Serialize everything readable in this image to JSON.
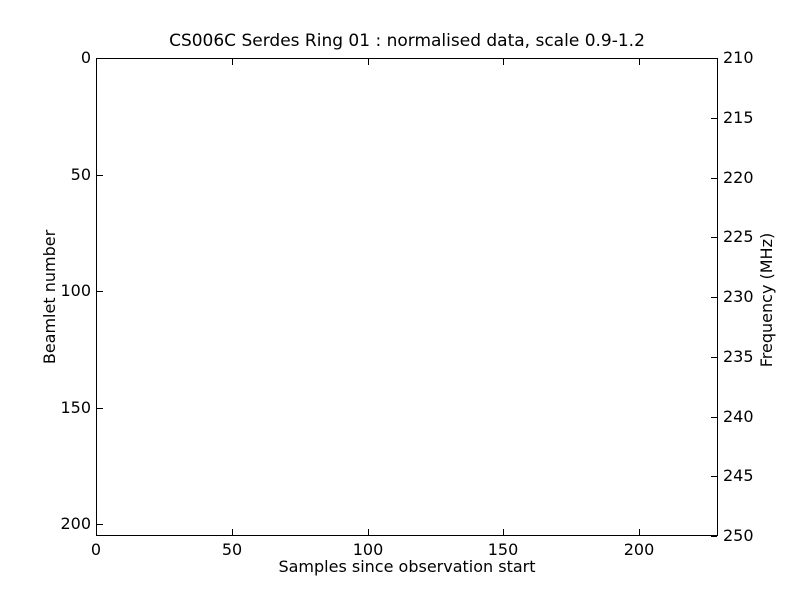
{
  "colors": {
    "background": "#ffffff",
    "foreground": "#000000",
    "plot_area_fill": "#ffffff"
  },
  "chart_data": {
    "type": "heatmap",
    "title": "CS006C Serdes Ring 01 : normalised data, scale 0.9-1.2",
    "xlabel": "Samples since observation start",
    "ylabel_left": "Beamlet number",
    "ylabel_right": "Frequency (MHz)",
    "xlim": [
      0,
      229
    ],
    "ylim_left": [
      0,
      205
    ],
    "y_left_direction": "top-down",
    "ylim_right": [
      210,
      250
    ],
    "y_right_direction": "top-down",
    "xticks": [
      0,
      50,
      100,
      150,
      200
    ],
    "yticks_left": [
      0,
      50,
      100,
      150,
      200
    ],
    "yticks_right": [
      210,
      215,
      220,
      225,
      230,
      235,
      240,
      245,
      250
    ],
    "grid": false,
    "legend": false,
    "values": [],
    "note": "plot area is rendered entirely blank/white; no data cells visible"
  }
}
